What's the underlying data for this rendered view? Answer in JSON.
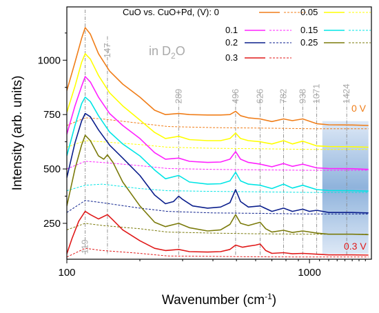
{
  "chart_data": {
    "type": "line",
    "xlabel": "Wavenumber (cm",
    "xlabel_sup": "-1",
    "xlabel_end": ")",
    "ylabel": "Intensity (arb. units)",
    "xscale": "log",
    "xlim": [
      100,
      1800
    ],
    "ylim": [
      85,
      1245
    ],
    "x_ticks": [
      100,
      1000
    ],
    "x_tick_labels": [
      "100",
      "1000"
    ],
    "y_ticks": [
      250,
      500,
      750,
      1000
    ],
    "y_tick_labels": [
      "250",
      "500",
      "750",
      "1000"
    ],
    "legend_title": "CuO vs. CuO+Pd, (V): 0",
    "legend_labels": [
      "0.05",
      "0.1",
      "0.15",
      "0.2",
      "0.25",
      "0.3"
    ],
    "annotation": "in D",
    "annotation_sub": "2",
    "annotation_end": "O",
    "top_voltage_label": "0 V",
    "bottom_voltage_label": "0.3 V",
    "peaks": [
      {
        "x": 119,
        "label": "119"
      },
      {
        "x": 147,
        "label": "147"
      },
      {
        "x": 289,
        "label": "289"
      },
      {
        "x": 496,
        "label": "496"
      },
      {
        "x": 626,
        "label": "626"
      },
      {
        "x": 782,
        "label": "782"
      },
      {
        "x": 938,
        "label": "938"
      },
      {
        "x": 1071,
        "label": "1071"
      },
      {
        "x": 1424,
        "label": "1424"
      }
    ],
    "shaded_region": [
      1130,
      1750
    ],
    "grid": false,
    "series": [
      {
        "key": "0",
        "color": "#f07d18",
        "offset": 700,
        "solid": [
          [
            100,
            860
          ],
          [
            108,
            990
          ],
          [
            115,
            1100
          ],
          [
            119,
            1150
          ],
          [
            125,
            1120
          ],
          [
            135,
            1030
          ],
          [
            150,
            950
          ],
          [
            170,
            890
          ],
          [
            200,
            830
          ],
          [
            230,
            770
          ],
          [
            255,
            750
          ],
          [
            289,
            755
          ],
          [
            320,
            750
          ],
          [
            380,
            748
          ],
          [
            430,
            748
          ],
          [
            470,
            750
          ],
          [
            496,
            765
          ],
          [
            520,
            745
          ],
          [
            560,
            735
          ],
          [
            626,
            730
          ],
          [
            700,
            718
          ],
          [
            782,
            730
          ],
          [
            850,
            722
          ],
          [
            938,
            730
          ],
          [
            1071,
            708
          ],
          [
            1200,
            703
          ],
          [
            1500,
            702
          ],
          [
            1750,
            700
          ]
        ],
        "dashed": [
          [
            100,
            700
          ],
          [
            119,
            735
          ],
          [
            140,
            730
          ],
          [
            200,
            710
          ],
          [
            260,
            695
          ],
          [
            400,
            690
          ],
          [
            600,
            688
          ],
          [
            1000,
            685
          ],
          [
            1750,
            685
          ]
        ]
      },
      {
        "key": "0.05",
        "color": "#ffff00",
        "offset": 600,
        "solid": [
          [
            100,
            760
          ],
          [
            108,
            880
          ],
          [
            115,
            990
          ],
          [
            119,
            1030
          ],
          [
            125,
            1005
          ],
          [
            135,
            930
          ],
          [
            150,
            850
          ],
          [
            170,
            790
          ],
          [
            200,
            725
          ],
          [
            230,
            668
          ],
          [
            255,
            640
          ],
          [
            289,
            650
          ],
          [
            320,
            635
          ],
          [
            380,
            630
          ],
          [
            430,
            630
          ],
          [
            470,
            640
          ],
          [
            496,
            665
          ],
          [
            520,
            640
          ],
          [
            560,
            630
          ],
          [
            626,
            625
          ],
          [
            700,
            615
          ],
          [
            782,
            630
          ],
          [
            850,
            615
          ],
          [
            938,
            628
          ],
          [
            1071,
            606
          ],
          [
            1200,
            603
          ],
          [
            1500,
            602
          ],
          [
            1750,
            600
          ]
        ],
        "dashed": [
          [
            100,
            600
          ],
          [
            119,
            630
          ],
          [
            140,
            625
          ],
          [
            200,
            612
          ],
          [
            260,
            600
          ],
          [
            400,
            595
          ],
          [
            600,
            593
          ],
          [
            1000,
            590
          ],
          [
            1750,
            590
          ]
        ]
      },
      {
        "key": "0.1",
        "color": "#ff20ff",
        "offset": 500,
        "solid": [
          [
            100,
            660
          ],
          [
            108,
            790
          ],
          [
            115,
            880
          ],
          [
            119,
            925
          ],
          [
            125,
            900
          ],
          [
            135,
            830
          ],
          [
            150,
            755
          ],
          [
            170,
            700
          ],
          [
            200,
            640
          ],
          [
            230,
            575
          ],
          [
            255,
            545
          ],
          [
            289,
            550
          ],
          [
            320,
            535
          ],
          [
            380,
            530
          ],
          [
            430,
            532
          ],
          [
            470,
            545
          ],
          [
            496,
            580
          ],
          [
            520,
            545
          ],
          [
            560,
            530
          ],
          [
            626,
            522
          ],
          [
            700,
            510
          ],
          [
            782,
            525
          ],
          [
            850,
            512
          ],
          [
            938,
            522
          ],
          [
            1071,
            505
          ],
          [
            1200,
            502
          ],
          [
            1500,
            501
          ],
          [
            1750,
            498
          ]
        ],
        "dashed": [
          [
            100,
            500
          ],
          [
            119,
            535
          ],
          [
            140,
            530
          ],
          [
            200,
            515
          ],
          [
            260,
            502
          ],
          [
            400,
            498
          ],
          [
            600,
            496
          ],
          [
            1000,
            494
          ],
          [
            1750,
            494
          ]
        ]
      },
      {
        "key": "0.15",
        "color": "#00e5e5",
        "offset": 400,
        "solid": [
          [
            100,
            560
          ],
          [
            108,
            700
          ],
          [
            115,
            800
          ],
          [
            119,
            830
          ],
          [
            125,
            810
          ],
          [
            135,
            745
          ],
          [
            150,
            670
          ],
          [
            170,
            615
          ],
          [
            200,
            560
          ],
          [
            230,
            495
          ],
          [
            255,
            455
          ],
          [
            289,
            470
          ],
          [
            320,
            440
          ],
          [
            380,
            430
          ],
          [
            430,
            432
          ],
          [
            470,
            445
          ],
          [
            496,
            485
          ],
          [
            520,
            445
          ],
          [
            560,
            430
          ],
          [
            626,
            425
          ],
          [
            700,
            410
          ],
          [
            782,
            430
          ],
          [
            850,
            412
          ],
          [
            938,
            425
          ],
          [
            1071,
            405
          ],
          [
            1200,
            401
          ],
          [
            1500,
            400
          ],
          [
            1750,
            398
          ]
        ],
        "dashed": [
          [
            100,
            400
          ],
          [
            119,
            425
          ],
          [
            140,
            430
          ],
          [
            200,
            410
          ],
          [
            260,
            400
          ],
          [
            400,
            397
          ],
          [
            600,
            395
          ],
          [
            1000,
            392
          ],
          [
            1750,
            392
          ]
        ]
      },
      {
        "key": "0.2",
        "color": "#0a1e8c",
        "offset": 300,
        "solid": [
          [
            100,
            460
          ],
          [
            108,
            620
          ],
          [
            115,
            720
          ],
          [
            119,
            755
          ],
          [
            125,
            740
          ],
          [
            135,
            680
          ],
          [
            150,
            610
          ],
          [
            170,
            550
          ],
          [
            200,
            470
          ],
          [
            230,
            380
          ],
          [
            255,
            340
          ],
          [
            275,
            350
          ],
          [
            289,
            375
          ],
          [
            300,
            360
          ],
          [
            330,
            330
          ],
          [
            380,
            320
          ],
          [
            430,
            325
          ],
          [
            470,
            345
          ],
          [
            496,
            405
          ],
          [
            520,
            350
          ],
          [
            560,
            325
          ],
          [
            626,
            330
          ],
          [
            700,
            305
          ],
          [
            782,
            320
          ],
          [
            850,
            305
          ],
          [
            938,
            315
          ],
          [
            1000,
            305
          ],
          [
            1071,
            310
          ],
          [
            1200,
            300
          ],
          [
            1500,
            300
          ],
          [
            1750,
            298
          ]
        ],
        "dashed": [
          [
            100,
            300
          ],
          [
            119,
            355
          ],
          [
            140,
            345
          ],
          [
            200,
            320
          ],
          [
            260,
            305
          ],
          [
            400,
            298
          ],
          [
            600,
            296
          ],
          [
            1000,
            293
          ],
          [
            1750,
            293
          ]
        ]
      },
      {
        "key": "0.25",
        "color": "#7a7a0a",
        "offset": 200,
        "solid": [
          [
            100,
            330
          ],
          [
            108,
            500
          ],
          [
            115,
            610
          ],
          [
            119,
            655
          ],
          [
            125,
            630
          ],
          [
            135,
            560
          ],
          [
            142,
            545
          ],
          [
            147,
            565
          ],
          [
            155,
            530
          ],
          [
            170,
            440
          ],
          [
            200,
            330
          ],
          [
            230,
            255
          ],
          [
            255,
            235
          ],
          [
            289,
            250
          ],
          [
            320,
            230
          ],
          [
            380,
            215
          ],
          [
            430,
            220
          ],
          [
            470,
            245
          ],
          [
            496,
            290
          ],
          [
            520,
            250
          ],
          [
            560,
            240
          ],
          [
            626,
            255
          ],
          [
            660,
            225
          ],
          [
            700,
            210
          ],
          [
            782,
            218
          ],
          [
            850,
            208
          ],
          [
            938,
            215
          ],
          [
            1071,
            205
          ],
          [
            1200,
            200
          ],
          [
            1500,
            200
          ],
          [
            1750,
            198
          ]
        ],
        "dashed": [
          [
            100,
            220
          ],
          [
            119,
            250
          ],
          [
            140,
            240
          ],
          [
            200,
            225
          ],
          [
            260,
            210
          ],
          [
            400,
            205
          ],
          [
            600,
            202
          ],
          [
            1000,
            200
          ],
          [
            1750,
            200
          ]
        ]
      },
      {
        "key": "0.3",
        "color": "#e01818",
        "offset": 100,
        "solid": [
          [
            100,
            110
          ],
          [
            105,
            180
          ],
          [
            112,
            260
          ],
          [
            119,
            305
          ],
          [
            125,
            290
          ],
          [
            135,
            270
          ],
          [
            147,
            290
          ],
          [
            155,
            265
          ],
          [
            170,
            220
          ],
          [
            200,
            170
          ],
          [
            230,
            135
          ],
          [
            255,
            125
          ],
          [
            289,
            130
          ],
          [
            320,
            120
          ],
          [
            380,
            118
          ],
          [
            430,
            120
          ],
          [
            470,
            130
          ],
          [
            496,
            150
          ],
          [
            530,
            140
          ],
          [
            560,
            145
          ],
          [
            600,
            150
          ],
          [
            626,
            155
          ],
          [
            660,
            125
          ],
          [
            700,
            112
          ],
          [
            782,
            115
          ],
          [
            850,
            110
          ],
          [
            938,
            112
          ],
          [
            1071,
            108
          ],
          [
            1200,
            105
          ],
          [
            1500,
            105
          ],
          [
            1750,
            104
          ]
        ],
        "dashed": [
          [
            100,
            95
          ],
          [
            119,
            135
          ],
          [
            140,
            125
          ],
          [
            200,
            112
          ],
          [
            260,
            100
          ],
          [
            400,
            98
          ],
          [
            600,
            96
          ],
          [
            1000,
            95
          ],
          [
            1750,
            95
          ]
        ]
      }
    ]
  }
}
